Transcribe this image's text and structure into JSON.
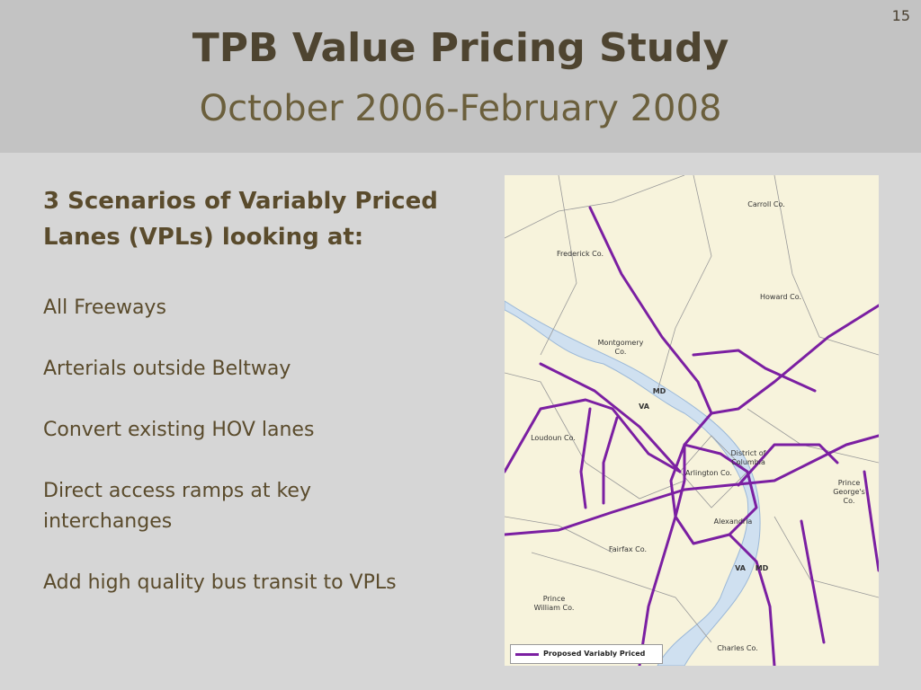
{
  "slide_number": "15",
  "header": {
    "title": "TPB Value Pricing Study",
    "subtitle": "October 2006-February 2008"
  },
  "body": {
    "heading": "3 Scenarios of Variably Priced Lanes (VPLs) looking at:",
    "items": [
      "All Freeways",
      "Arterials outside Beltway",
      "Convert existing HOV lanes",
      "Direct access ramps at key interchanges",
      "Add high quality bus transit to VPLs"
    ]
  },
  "map": {
    "labels": [
      "Carroll Co.",
      "Frederick Co.",
      "Howard Co.",
      "Montgomery Co.",
      "MD",
      "VA",
      "Loudoun Co.",
      "District of Columbia",
      "Arlington Co.",
      "Prince George's Co.",
      "Alexandria",
      "Fairfax Co.",
      "VA",
      "MD",
      "Prince William Co.",
      "Charles Co."
    ],
    "legend": "Proposed Variably Priced Lanes"
  }
}
